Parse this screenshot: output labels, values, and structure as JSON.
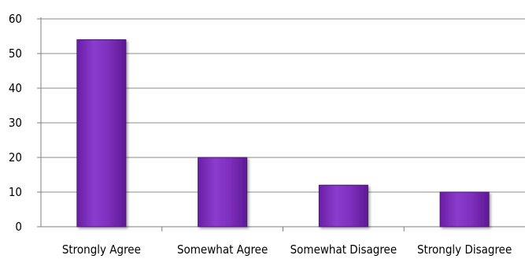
{
  "chart_data": {
    "type": "bar",
    "title": "",
    "xlabel": "",
    "ylabel": "",
    "categories": [
      "Strongly Agree",
      "Somewhat Agree",
      "Somewhat Disagree",
      "Strongly Disagree"
    ],
    "values": [
      54,
      20,
      12,
      10
    ],
    "ylim": [
      0,
      60
    ],
    "yticks": [
      "0",
      "10",
      "20",
      "30",
      "40",
      "50",
      "60"
    ],
    "grid": true,
    "legend": "none",
    "colors": {
      "bar_top": "#9a45d6",
      "bar_mid": "#7e2fbd",
      "bar_bottom": "#6a1fa6",
      "bar_edge": "#4b1578",
      "grid": "#8c8c8c",
      "axis": "#7f7f7f"
    }
  }
}
